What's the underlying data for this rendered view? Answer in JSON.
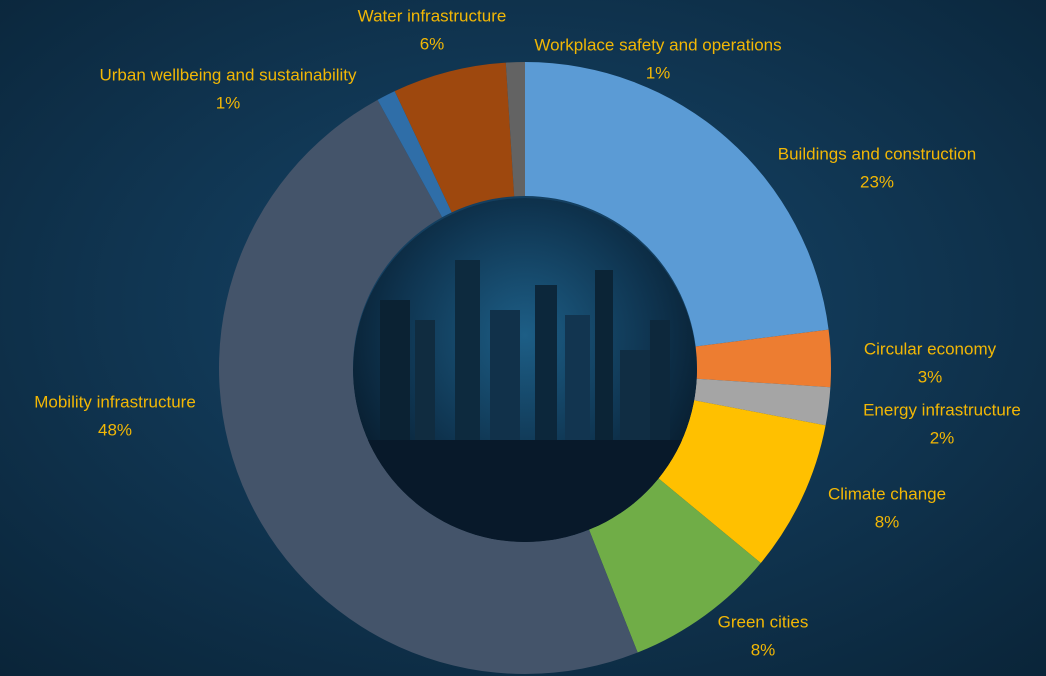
{
  "chart_data": {
    "type": "donut",
    "categories": [
      "Buildings and construction",
      "Circular economy",
      "Energy infrastructure",
      "Climate change",
      "Green cities",
      "Mobility infrastructure",
      "Urban wellbeing and sustainability",
      "Water infrastructure",
      "Workplace safety and operations"
    ],
    "values": [
      23,
      3,
      2,
      8,
      8,
      48,
      1,
      6,
      1
    ],
    "value_labels": [
      "23%",
      "3%",
      "2%",
      "8%",
      "8%",
      "48%",
      "1%",
      "6%",
      "1%"
    ],
    "colors": [
      "#5b9bd5",
      "#ed7d31",
      "#a5a5a5",
      "#ffc000",
      "#70ad47",
      "#44546a",
      "#2f6ea8",
      "#9e480e",
      "#636363"
    ]
  }
}
